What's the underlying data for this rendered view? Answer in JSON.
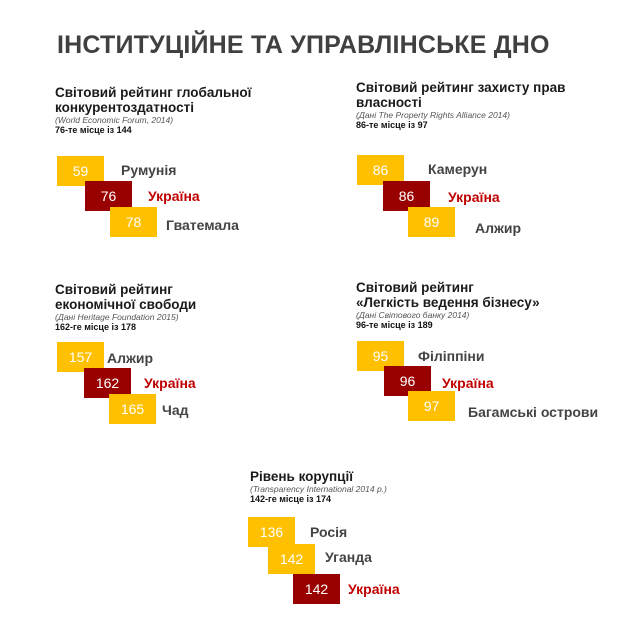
{
  "title": "ІНСТИТУЦІЙНЕ ТА УПРАВЛІНСЬКЕ ДНО",
  "colors": {
    "other": "#FFC000",
    "ukraine": "#990000",
    "ukraine_label": "#C00000"
  },
  "panels": [
    {
      "title1": "Світовий рейтинг глобальної",
      "title2": "конкурентоздатності",
      "source": "(World Economic Forum, 2014)",
      "rank": "76-те місце із 144",
      "items": [
        {
          "value": "59",
          "country": "Румунія"
        },
        {
          "value": "76",
          "country": "Україна"
        },
        {
          "value": "78",
          "country": "Гватемала"
        }
      ]
    },
    {
      "title1": "Світовий рейтинг захисту прав",
      "title2": "власності",
      "source": "(Дані The Property Rights Alliance 2014)",
      "rank": "86-те місце із 97",
      "items": [
        {
          "value": "86",
          "country": "Камерун"
        },
        {
          "value": "86",
          "country": "Україна"
        },
        {
          "value": "89",
          "country": "Алжир"
        }
      ]
    },
    {
      "title1": "Світовий рейтинг",
      "title2": "економічної свободи",
      "source": "(Дані Heritage Foundation 2015)",
      "rank": "162-ге місце із 178",
      "items": [
        {
          "value": "157",
          "country": "Алжир"
        },
        {
          "value": "162",
          "country": "Україна"
        },
        {
          "value": "165",
          "country": "Чад"
        }
      ]
    },
    {
      "title1": "Світовий рейтинг",
      "title2": "«Легкість ведення бізнесу»",
      "source": "(Дані Світового банку 2014)",
      "rank": "96-те місце із 189",
      "items": [
        {
          "value": "95",
          "country": "Філіппіни"
        },
        {
          "value": "96",
          "country": "Україна"
        },
        {
          "value": "97",
          "country": "Багамські острови"
        }
      ]
    },
    {
      "title1": "Рівень корупції",
      "title2": "",
      "source": "(Transparency International 2014 р.)",
      "rank": "142-ге місце із 174",
      "items": [
        {
          "value": "136",
          "country": "Росія"
        },
        {
          "value": "142",
          "country": "Уганда"
        },
        {
          "value": "142",
          "country": "Україна"
        }
      ]
    }
  ]
}
